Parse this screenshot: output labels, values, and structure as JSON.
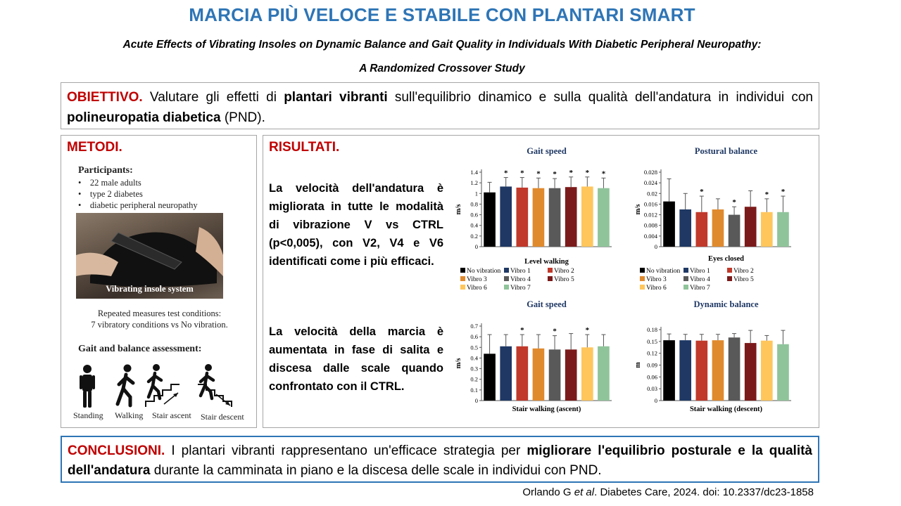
{
  "header": {
    "title": "MARCIA PIÙ VELOCE E STABILE CON PLANTARI SMART",
    "subtitle_line1": "Acute Effects of Vibrating Insoles on Dynamic Balance and Gait Quality in Individuals With Diabetic Peripheral Neuropathy:",
    "subtitle_line2": "A Randomized Crossover Study"
  },
  "objective": {
    "label": "OBIETTIVO.",
    "text1": " Valutare gli effetti di ",
    "bold1": "plantari vibranti",
    "text2": " sull'equilibrio dinamico e sulla qualità dell'andatura in individui con ",
    "bold2": "polineuropatia diabetica",
    "text3": " (PND)."
  },
  "methods": {
    "label": "METODI.",
    "participants_title": "Participants:",
    "participants": [
      "22 male adults",
      "type 2 diabetes",
      "diabetic peripheral neuropathy"
    ],
    "photo_caption": "Vibrating insole system",
    "conditions_line1": "Repeated measures test conditions:",
    "conditions_line2": "7 vibratory conditions vs No vibration.",
    "assessment_title": "Gait and balance assessment:",
    "icons": [
      "Standing",
      "Walking",
      "Stair ascent",
      "Stair descent"
    ]
  },
  "results": {
    "label": "RISULTATI.",
    "text1": "La velocità dell'andatura è migliorata in tutte le modalità di vibrazione V vs CTRL (p<0,005), con V2, V4 e V6 identificati come i più efficaci.",
    "text2": "La velocità della marcia è aumentata in fase di salita e discesa dalle scale quando confrontato con il CTRL."
  },
  "colors": {
    "title_blue": "#2e75b6",
    "section_red": "#c00000",
    "series": [
      "#000000",
      "#1f3864",
      "#c0392b",
      "#e08a2e",
      "#595959",
      "#7b1a1a",
      "#ffc65c",
      "#8fc49a"
    ]
  },
  "legend": [
    "No vibration",
    "Vibro 1",
    "Vibro 2",
    "Vibro 3",
    "Vibro 4",
    "Vibro 5",
    "Vibro 6",
    "Vibro 7"
  ],
  "chart_data": [
    {
      "type": "bar",
      "title": "Gait speed",
      "xlabel": "Level walking",
      "ylabel": "m/s",
      "categories": [
        "No vibration",
        "Vibro 1",
        "Vibro 2",
        "Vibro 3",
        "Vibro 4",
        "Vibro 5",
        "Vibro 6",
        "Vibro 7"
      ],
      "values": [
        1.02,
        1.13,
        1.11,
        1.1,
        1.1,
        1.12,
        1.13,
        1.1
      ],
      "errors": [
        0.19,
        0.17,
        0.19,
        0.19,
        0.18,
        0.19,
        0.18,
        0.19
      ],
      "significant": [
        false,
        true,
        true,
        true,
        true,
        true,
        true,
        true
      ],
      "ylim": [
        0,
        1.4
      ],
      "yticks": [
        "0",
        "0.2",
        "0.4",
        "0.6",
        "0.8",
        "1",
        "1.2",
        "1.4"
      ]
    },
    {
      "type": "bar",
      "title": "Postural balance",
      "xlabel": "Eyes closed",
      "ylabel": "m/s",
      "categories": [
        "No vibration",
        "Vibro 1",
        "Vibro 2",
        "Vibro 3",
        "Vibro 4",
        "Vibro 5",
        "Vibro 6",
        "Vibro 7"
      ],
      "values": [
        0.017,
        0.014,
        0.013,
        0.014,
        0.012,
        0.015,
        0.013,
        0.013
      ],
      "errors": [
        0.0085,
        0.006,
        0.006,
        0.004,
        0.003,
        0.006,
        0.005,
        0.006
      ],
      "significant": [
        false,
        false,
        true,
        false,
        true,
        false,
        true,
        true
      ],
      "ylim": [
        0,
        0.028
      ],
      "yticks": [
        "0",
        "0.004",
        "0.008",
        "0.012",
        "0.016",
        "0.02",
        "0.024",
        "0.028"
      ]
    },
    {
      "type": "bar",
      "title": "Gait speed",
      "xlabel": "Stair walking (ascent)",
      "ylabel": "m/s",
      "categories": [
        "No vibration",
        "Vibro 1",
        "Vibro 2",
        "Vibro 3",
        "Vibro 4",
        "Vibro 5",
        "Vibro 6",
        "Vibro 7"
      ],
      "values": [
        0.44,
        0.51,
        0.51,
        0.49,
        0.48,
        0.48,
        0.5,
        0.51
      ],
      "errors": [
        0.18,
        0.11,
        0.11,
        0.13,
        0.13,
        0.15,
        0.12,
        0.11
      ],
      "significant": [
        false,
        false,
        true,
        false,
        true,
        false,
        true,
        false
      ],
      "ylim": [
        0,
        0.7
      ],
      "yticks": [
        "0",
        "0.1",
        "0.2",
        "0.3",
        "0.4",
        "0.5",
        "0.6",
        "0.7"
      ]
    },
    {
      "type": "bar",
      "title": "Dynamic balance",
      "xlabel": "Stair walking (descent)",
      "ylabel": "m",
      "categories": [
        "No vibration",
        "Vibro 1",
        "Vibro 2",
        "Vibro 3",
        "Vibro 4",
        "Vibro 5",
        "Vibro 6",
        "Vibro 7"
      ],
      "values": [
        0.153,
        0.153,
        0.152,
        0.153,
        0.16,
        0.146,
        0.152,
        0.143
      ],
      "errors": [
        0.016,
        0.015,
        0.016,
        0.015,
        0.01,
        0.032,
        0.013,
        0.035
      ],
      "significant": [
        false,
        false,
        false,
        false,
        false,
        false,
        false,
        false
      ],
      "ylim": [
        0,
        0.18
      ],
      "yticks": [
        "0",
        "0.03",
        "0.06",
        "0.09",
        "0.12",
        "0.15",
        "0.18"
      ]
    }
  ],
  "conclusions": {
    "label": "CONCLUSIONI.",
    "text1": " I plantari vibranti rappresentano un'efficace strategia per ",
    "bold1": "migliorare l'equilibrio posturale e la qualità dell'andatura",
    "text2": " durante la camminata in piano e la discesa delle scale in individui con PND."
  },
  "citation": {
    "authors": "Orlando G ",
    "etal": "et al",
    "rest": ". Diabetes Care, 2024. doi: 10.2337/dc23-1858"
  }
}
